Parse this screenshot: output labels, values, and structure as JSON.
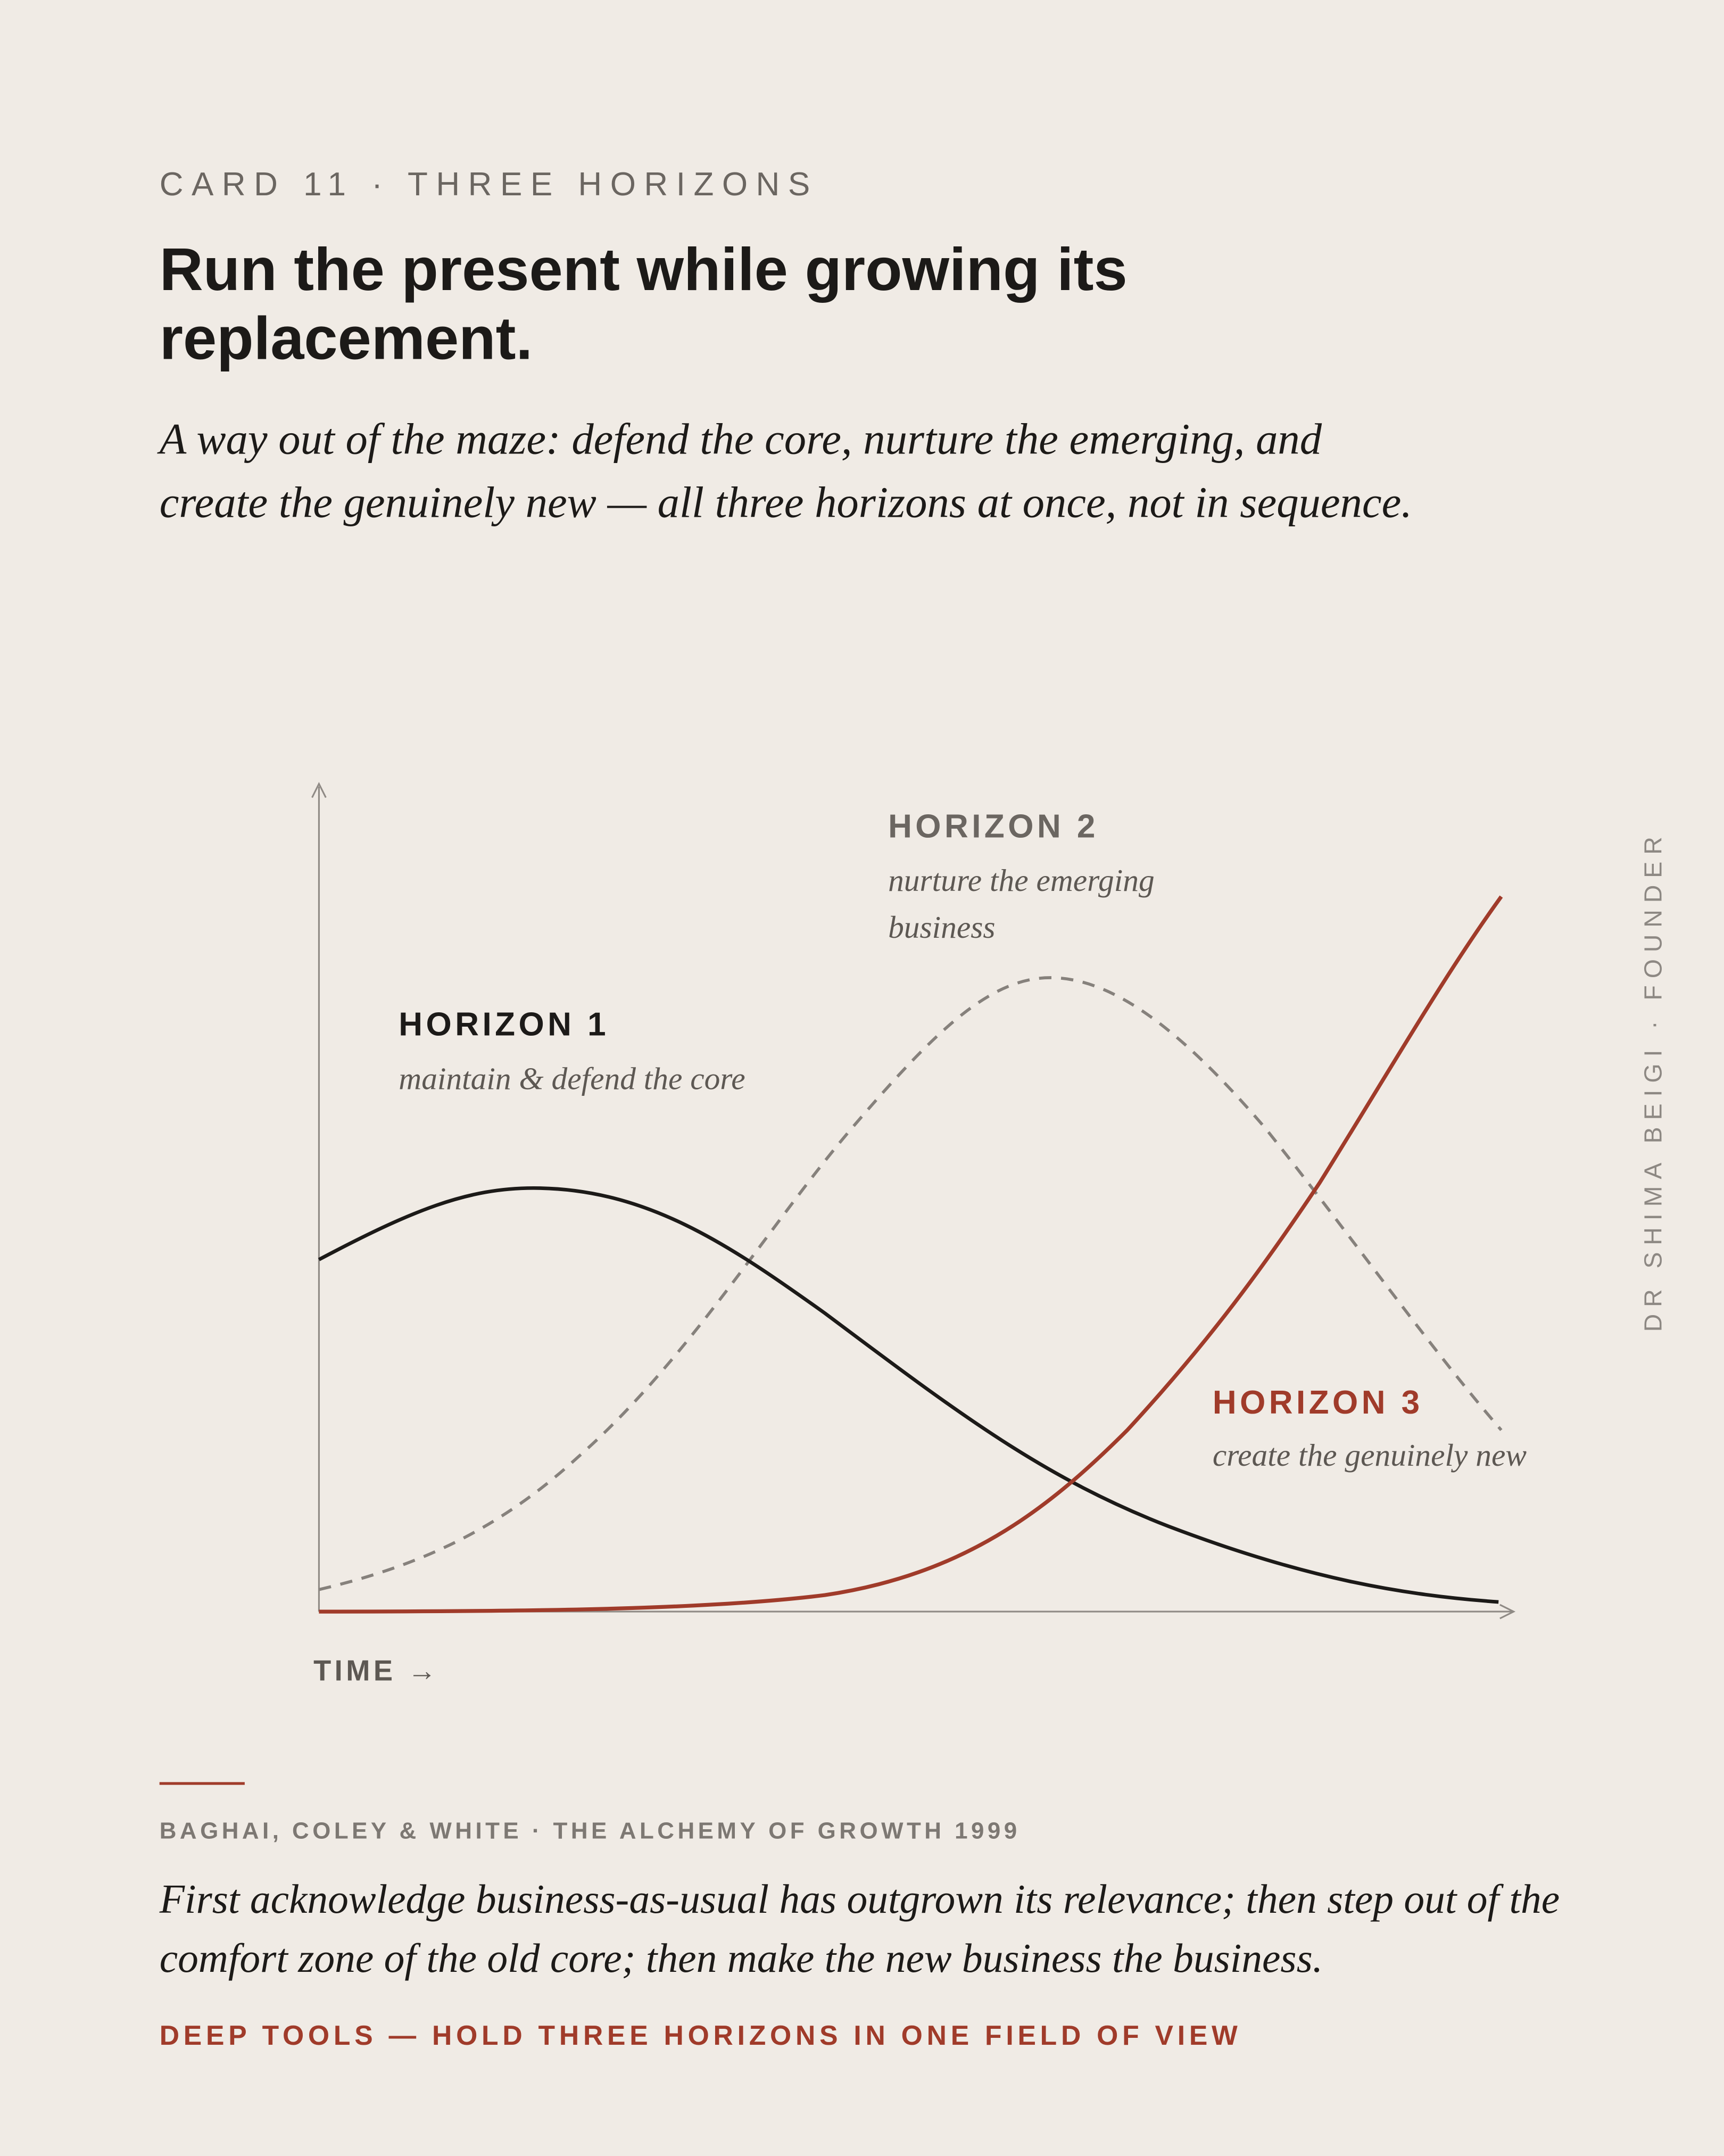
{
  "header": {
    "kicker": "CARD 11 · THREE HORIZONS",
    "title": "Run the present while growing its replacement.",
    "subtitle": "A way out of the maze: defend the core, nurture the emerging, and create the genuinely new — all three horizons at once, not in sequence."
  },
  "diagram": {
    "horizons": [
      {
        "label": "HORIZON 1",
        "caption": "maintain & defend the core"
      },
      {
        "label": "HORIZON 2",
        "caption": "nurture the emerging business"
      },
      {
        "label": "HORIZON 3",
        "caption": "create the genuinely new"
      }
    ],
    "x_axis_label": "TIME →"
  },
  "side_text": "DR SHIMA BEIGI · FOUNDER",
  "footer": {
    "source": "BAGHAI, COLEY & WHITE · THE ALCHEMY OF GROWTH 1999",
    "quote": "First acknowledge business-as-usual has outgrown its relevance; then step out of the comfort zone of the old core; then make the new business the business.",
    "tagline": "DEEP TOOLS — HOLD THREE HORIZONS IN ONE FIELD OF VIEW"
  }
}
